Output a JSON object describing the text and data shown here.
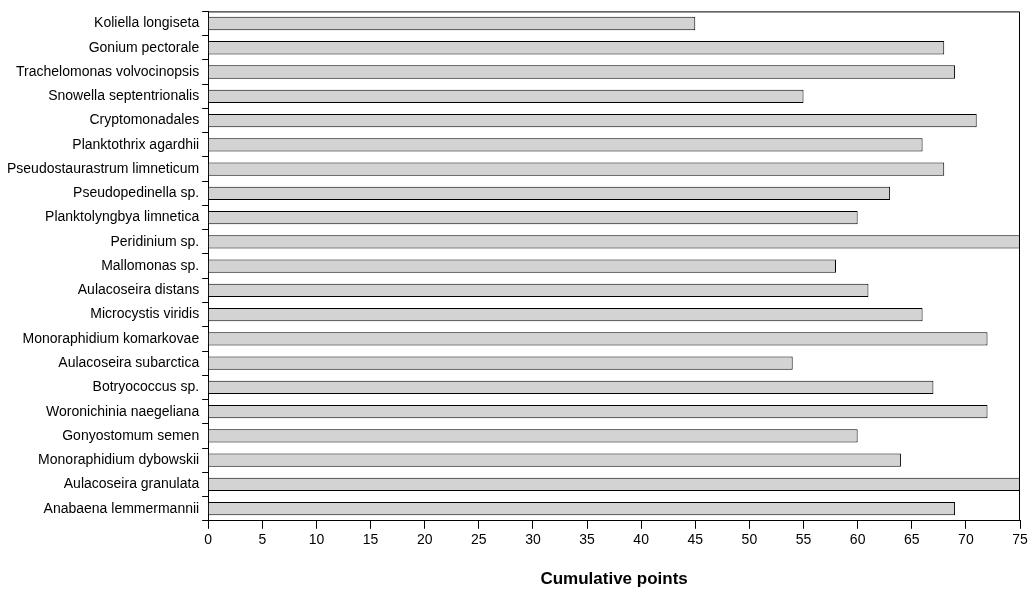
{
  "chart_data": {
    "type": "bar",
    "orientation": "horizontal",
    "xlabel": "Cumulative points",
    "categories": [
      "Koliella longiseta",
      "Gonium pectorale",
      "Trachelomonas volvocinopsis",
      "Snowella septentrionalis",
      "Cryptomonadales",
      "Planktothrix agardhii",
      "Pseudostaurastrum limneticum",
      "Pseudopedinella sp.",
      "Planktolyngbya limnetica",
      "Peridinium sp.",
      "Mallomonas sp.",
      "Aulacoseira distans",
      "Microcystis viridis",
      "Monoraphidium komarkovae",
      "Aulacoseira subarctica",
      "Botryococcus sp.",
      "Woronichinia naegeliana",
      "Gonyostomum semen",
      "Monoraphidium dybowskii",
      "Aulacoseira granulata",
      "Anabaena lemmermannii"
    ],
    "values": [
      45,
      68,
      69,
      55,
      71,
      66,
      68,
      63,
      60,
      75,
      58,
      61,
      66,
      72,
      54,
      67,
      72,
      60,
      64,
      75,
      69
    ],
    "color": "#d3d3d3",
    "xlim": [
      0,
      75
    ],
    "xticks": [
      0,
      5,
      10,
      15,
      20,
      25,
      30,
      35,
      40,
      45,
      50,
      55,
      60,
      65,
      70,
      75
    ],
    "grid": false,
    "legend": false
  }
}
